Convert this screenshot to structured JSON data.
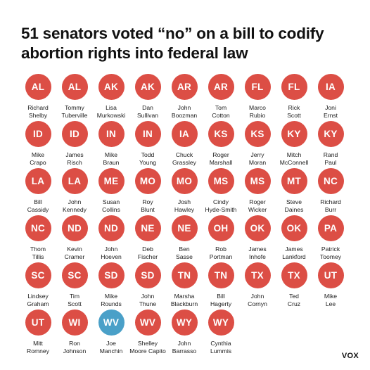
{
  "title": "51 senators voted “no” on a bill to codify abortion rights into federal law",
  "logo": "VOX",
  "colors": {
    "republican": "#dc4e45",
    "democrat": "#4aa0c8"
  },
  "senators": [
    {
      "state": "AL",
      "first": "Richard",
      "last": "Shelby",
      "party": "R"
    },
    {
      "state": "AL",
      "first": "Tommy",
      "last": "Tuberville",
      "party": "R"
    },
    {
      "state": "AK",
      "first": "Lisa",
      "last": "Murkowski",
      "party": "R"
    },
    {
      "state": "AK",
      "first": "Dan",
      "last": "Sullivan",
      "party": "R"
    },
    {
      "state": "AR",
      "first": "John",
      "last": "Boozman",
      "party": "R"
    },
    {
      "state": "AR",
      "first": "Tom",
      "last": "Cotton",
      "party": "R"
    },
    {
      "state": "FL",
      "first": "Marco",
      "last": "Rubio",
      "party": "R"
    },
    {
      "state": "FL",
      "first": "Rick",
      "last": "Scott",
      "party": "R"
    },
    {
      "state": "IA",
      "first": "Joni",
      "last": "Ernst",
      "party": "R"
    },
    {
      "state": "ID",
      "first": "Mike",
      "last": "Crapo",
      "party": "R"
    },
    {
      "state": "ID",
      "first": "James",
      "last": "Risch",
      "party": "R"
    },
    {
      "state": "IN",
      "first": "Mike",
      "last": "Braun",
      "party": "R"
    },
    {
      "state": "IN",
      "first": "Todd",
      "last": "Young",
      "party": "R"
    },
    {
      "state": "IA",
      "first": "Chuck",
      "last": "Grassley",
      "party": "R"
    },
    {
      "state": "KS",
      "first": "Roger",
      "last": "Marshall",
      "party": "R"
    },
    {
      "state": "KS",
      "first": "Jerry",
      "last": "Moran",
      "party": "R"
    },
    {
      "state": "KY",
      "first": "Mitch",
      "last": "McConnell",
      "party": "R"
    },
    {
      "state": "KY",
      "first": "Rand",
      "last": "Paul",
      "party": "R"
    },
    {
      "state": "LA",
      "first": "Bill",
      "last": "Cassidy",
      "party": "R"
    },
    {
      "state": "LA",
      "first": "John",
      "last": "Kennedy",
      "party": "R"
    },
    {
      "state": "ME",
      "first": "Susan",
      "last": "Collins",
      "party": "R"
    },
    {
      "state": "MO",
      "first": "Roy",
      "last": "Blunt",
      "party": "R"
    },
    {
      "state": "MO",
      "first": "Josh",
      "last": "Hawley",
      "party": "R"
    },
    {
      "state": "MS",
      "first": "Cindy",
      "last": "Hyde-Smith",
      "party": "R"
    },
    {
      "state": "MS",
      "first": "Roger",
      "last": "Wicker",
      "party": "R"
    },
    {
      "state": "MT",
      "first": "Steve",
      "last": "Daines",
      "party": "R"
    },
    {
      "state": "NC",
      "first": "Richard",
      "last": "Burr",
      "party": "R"
    },
    {
      "state": "NC",
      "first": "Thom",
      "last": "Tillis",
      "party": "R"
    },
    {
      "state": "ND",
      "first": "Kevin",
      "last": "Cramer",
      "party": "R"
    },
    {
      "state": "ND",
      "first": "John",
      "last": "Hoeven",
      "party": "R"
    },
    {
      "state": "NE",
      "first": "Deb",
      "last": "Fischer",
      "party": "R"
    },
    {
      "state": "NE",
      "first": "Ben",
      "last": "Sasse",
      "party": "R"
    },
    {
      "state": "OH",
      "first": "Rob",
      "last": "Portman",
      "party": "R"
    },
    {
      "state": "OK",
      "first": "James",
      "last": "Inhofe",
      "party": "R"
    },
    {
      "state": "OK",
      "first": "James",
      "last": "Lankford",
      "party": "R"
    },
    {
      "state": "PA",
      "first": "Patrick",
      "last": "Toomey",
      "party": "R"
    },
    {
      "state": "SC",
      "first": "Lindsey",
      "last": "Graham",
      "party": "R"
    },
    {
      "state": "SC",
      "first": "Tim",
      "last": "Scott",
      "party": "R"
    },
    {
      "state": "SD",
      "first": "Mike",
      "last": "Rounds",
      "party": "R"
    },
    {
      "state": "SD",
      "first": "John",
      "last": "Thune",
      "party": "R"
    },
    {
      "state": "TN",
      "first": "Marsha",
      "last": "Blackburn",
      "party": "R"
    },
    {
      "state": "TN",
      "first": "Bill",
      "last": "Hagerty",
      "party": "R"
    },
    {
      "state": "TX",
      "first": "John",
      "last": "Cornyn",
      "party": "R"
    },
    {
      "state": "TX",
      "first": "Ted",
      "last": "Cruz",
      "party": "R"
    },
    {
      "state": "UT",
      "first": "Mike",
      "last": "Lee",
      "party": "R"
    },
    {
      "state": "UT",
      "first": "Mitt",
      "last": "Romney",
      "party": "R"
    },
    {
      "state": "WI",
      "first": "Ron",
      "last": "Johnson",
      "party": "R"
    },
    {
      "state": "WV",
      "first": "Joe",
      "last": "Manchin",
      "party": "D"
    },
    {
      "state": "WV",
      "first": "Shelley",
      "last": "Moore Capito",
      "party": "R"
    },
    {
      "state": "WY",
      "first": "John",
      "last": "Barrasso",
      "party": "R"
    },
    {
      "state": "WY",
      "first": "Cynthia",
      "last": "Lummis",
      "party": "R"
    }
  ]
}
